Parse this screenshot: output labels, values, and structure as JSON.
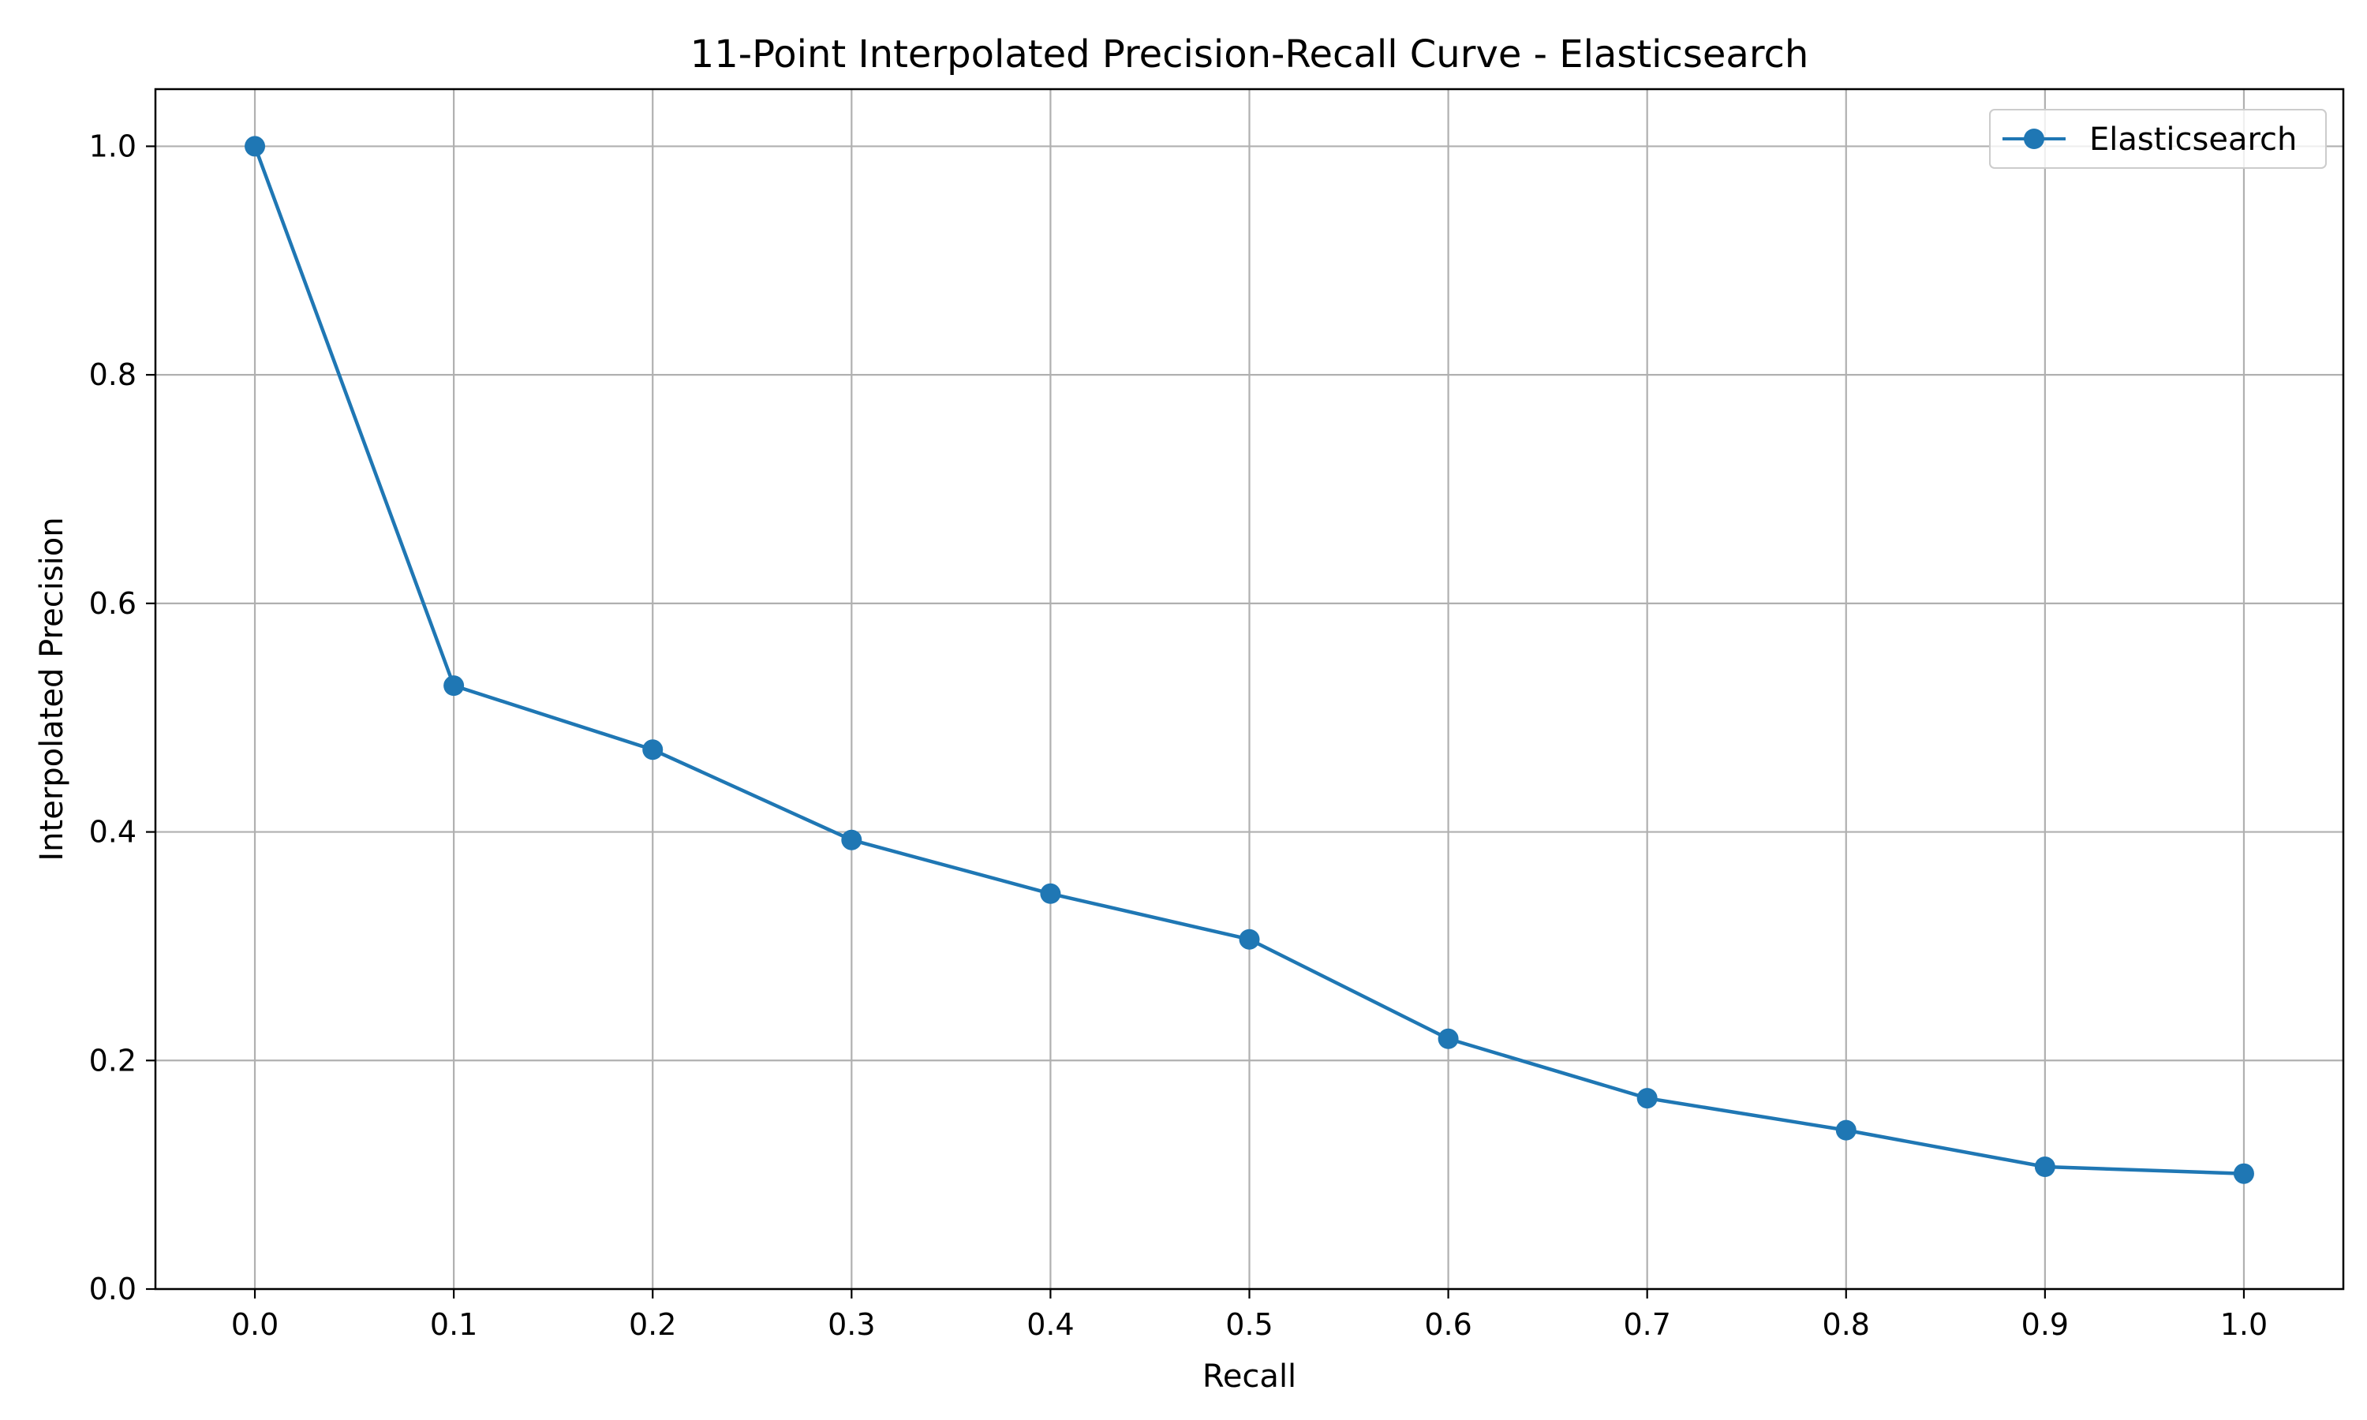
{
  "chart_data": {
    "type": "line",
    "title": "11-Point Interpolated Precision-Recall Curve - Elasticsearch",
    "xlabel": "Recall",
    "ylabel": "Interpolated Precision",
    "xlim": [
      -0.05,
      1.05
    ],
    "ylim": [
      0.0,
      1.05
    ],
    "xticks": [
      "0.0",
      "0.1",
      "0.2",
      "0.3",
      "0.4",
      "0.5",
      "0.6",
      "0.7",
      "0.8",
      "0.9",
      "1.0"
    ],
    "yticks": [
      "0.0",
      "0.2",
      "0.4",
      "0.6",
      "0.8",
      "1.0"
    ],
    "grid": true,
    "legend_position": "top-right",
    "series": [
      {
        "name": "Elasticsearch",
        "color": "#1f77b4",
        "marker": "circle",
        "x": [
          0.0,
          0.1,
          0.2,
          0.3,
          0.4,
          0.5,
          0.6,
          0.7,
          0.8,
          0.9,
          1.0
        ],
        "y": [
          1.0,
          0.528,
          0.472,
          0.393,
          0.346,
          0.306,
          0.219,
          0.167,
          0.139,
          0.107,
          0.101
        ]
      }
    ]
  }
}
